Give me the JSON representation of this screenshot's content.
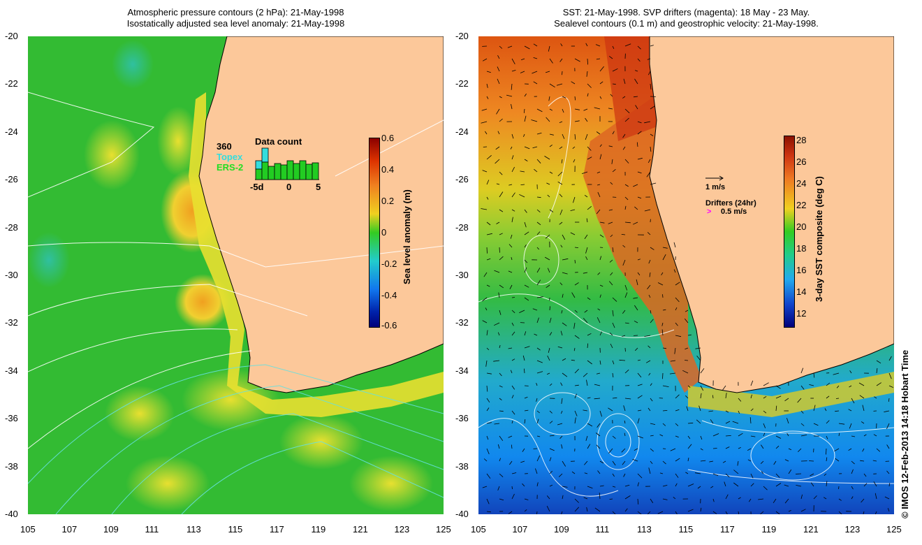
{
  "left_panel": {
    "title_line1": "Atmospheric pressure contours (2 hPa): 21-May-1998",
    "title_line2": "Isostatically adjusted sea level anomaly: 21-May-1998",
    "colorbar": {
      "label": "Sea level anomaly (m)",
      "ticks": [
        "0.6",
        "0.4",
        "0.2",
        "0",
        "-0.2",
        "-0.4",
        "-0.6"
      ],
      "range": [
        -0.6,
        0.6
      ]
    },
    "inset": {
      "title": "Data count",
      "count": "360",
      "series1": "Topex",
      "series2": "ERS-2",
      "x_ticks": [
        "-5d",
        "0",
        "5"
      ],
      "topex_color": "#33cccc",
      "ers_color": "#22cc22"
    }
  },
  "right_panel": {
    "title_line1": "SST: 21-May-1998. SVP drifters (magenta): 18 May - 23 May.",
    "title_line2": "Sealevel contours (0.1 m) and geostrophic velocity: 21-May-1998.",
    "colorbar": {
      "label": "3-day SST composite (deg C)",
      "ticks": [
        "28",
        "26",
        "24",
        "22",
        "20",
        "18",
        "16",
        "14",
        "12"
      ],
      "range": [
        11,
        28.5
      ]
    },
    "scale_label": "1 m/s",
    "drifter_label": "Drifters (24hr)",
    "drifter_speed": "0.5 m/s",
    "drifter_color": "#ff00ff"
  },
  "axes": {
    "lat_ticks": [
      "-20",
      "-22",
      "-24",
      "-26",
      "-28",
      "-30",
      "-32",
      "-34",
      "-36",
      "-38",
      "-40"
    ],
    "lon_ticks": [
      "105",
      "107",
      "109",
      "111",
      "113",
      "115",
      "117",
      "119",
      "121",
      "123",
      "125"
    ]
  },
  "credit": "© IMOS 12-Feb-2013 14:18 Hobart Time",
  "colors": {
    "land": "#fcc89a",
    "ocean_anomaly_base": "#33cc22",
    "sst_warm": "#dd4411",
    "sst_cool": "#1188dd"
  }
}
